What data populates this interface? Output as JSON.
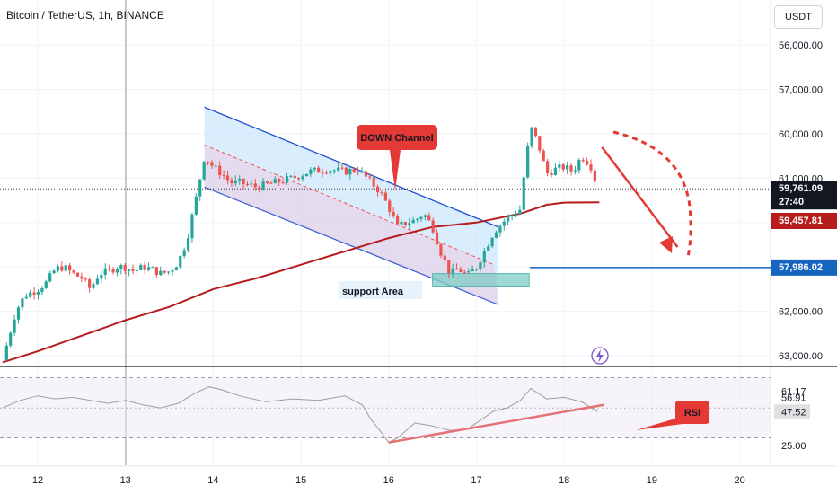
{
  "header": {
    "title": "Bitcoin / TetherUS, 1h, BINANCE"
  },
  "currency_button": "USDT",
  "colors": {
    "up": "#26a69a",
    "down": "#ef5350",
    "ma": "#b71c1c",
    "channel": "#1e4fd8",
    "channel_fill": "#bbdefb",
    "support_fill": "#80cbc4",
    "level": "#1565c0",
    "rsi_line": "#9e9e9e",
    "rsi_trend": "#e57373",
    "callout": "#e53935"
  },
  "price_axis": {
    "ticks": [
      "63,000.00",
      "62,000.00",
      "61,000.00",
      "60,000.00",
      "57,000.00",
      "56,000.00"
    ]
  },
  "price_tags": {
    "current": "59,761.09",
    "countdown": "27:40",
    "ma": "59,457.81",
    "level": "57,986.02"
  },
  "rsi_axis": {
    "labels": [
      "61.17",
      "56.91",
      "47.52",
      "25.00"
    ]
  },
  "time_axis": {
    "labels": [
      "12",
      "13",
      "14",
      "15",
      "16",
      "17",
      "18",
      "19",
      "20"
    ]
  },
  "annotations": {
    "down_channel": "DOWN Channel",
    "support": "support Area",
    "rsi": "RSI"
  },
  "chart_data": {
    "type": "candlestick",
    "title": "Bitcoin / TetherUS, 1h, BINANCE",
    "x_range": [
      "11.6",
      "20.3"
    ],
    "ylim": [
      55800,
      63700
    ],
    "x_ticks": [
      12,
      13,
      14,
      15,
      16,
      17,
      18,
      19,
      20
    ],
    "y_ticks": [
      56000,
      57000,
      60000,
      61000,
      62000,
      63000
    ],
    "close_path": [
      [
        11.6,
        55900
      ],
      [
        11.75,
        57000
      ],
      [
        11.85,
        57350
      ],
      [
        12.0,
        57500
      ],
      [
        12.1,
        57650
      ],
      [
        12.2,
        57950
      ],
      [
        12.3,
        58000
      ],
      [
        12.4,
        57850
      ],
      [
        12.5,
        57750
      ],
      [
        12.6,
        57500
      ],
      [
        12.7,
        57850
      ],
      [
        12.8,
        57900
      ],
      [
        12.9,
        58000
      ],
      [
        13.0,
        58000
      ],
      [
        13.1,
        57900
      ],
      [
        13.2,
        58000
      ],
      [
        13.3,
        57950
      ],
      [
        13.4,
        57850
      ],
      [
        13.5,
        57900
      ],
      [
        13.6,
        58100
      ],
      [
        13.7,
        58600
      ],
      [
        13.8,
        59500
      ],
      [
        13.9,
        60500
      ],
      [
        14.0,
        60250
      ],
      [
        14.1,
        60100
      ],
      [
        14.2,
        59900
      ],
      [
        14.3,
        59900
      ],
      [
        14.5,
        59800
      ],
      [
        14.7,
        59900
      ],
      [
        14.9,
        60000
      ],
      [
        15.1,
        60150
      ],
      [
        15.3,
        60200
      ],
      [
        15.5,
        60150
      ],
      [
        15.65,
        60200
      ],
      [
        15.8,
        59900
      ],
      [
        15.9,
        59700
      ],
      [
        16.0,
        59350
      ],
      [
        16.1,
        58900
      ],
      [
        16.2,
        59000
      ],
      [
        16.3,
        59050
      ],
      [
        16.4,
        59200
      ],
      [
        16.5,
        58900
      ],
      [
        16.6,
        58300
      ],
      [
        16.7,
        57850
      ],
      [
        16.8,
        57950
      ],
      [
        16.9,
        57800
      ],
      [
        17.0,
        58000
      ],
      [
        17.1,
        58400
      ],
      [
        17.2,
        58800
      ],
      [
        17.35,
        59100
      ],
      [
        17.5,
        59300
      ],
      [
        17.55,
        60200
      ],
      [
        17.62,
        61150
      ],
      [
        17.7,
        60800
      ],
      [
        17.8,
        60100
      ],
      [
        17.9,
        60200
      ],
      [
        18.0,
        60250
      ],
      [
        18.1,
        60150
      ],
      [
        18.2,
        60500
      ],
      [
        18.3,
        60300
      ],
      [
        18.38,
        59761
      ]
    ],
    "moving_average": [
      [
        11.6,
        55850
      ],
      [
        12.0,
        56100
      ],
      [
        12.5,
        56450
      ],
      [
        13.0,
        56800
      ],
      [
        13.5,
        57100
      ],
      [
        14.0,
        57500
      ],
      [
        14.5,
        57750
      ],
      [
        15.0,
        58050
      ],
      [
        15.5,
        58350
      ],
      [
        16.0,
        58650
      ],
      [
        16.5,
        58900
      ],
      [
        17.0,
        59000
      ],
      [
        17.5,
        59200
      ],
      [
        17.8,
        59400
      ],
      [
        18.0,
        59450
      ],
      [
        18.4,
        59457.81
      ]
    ],
    "channel": {
      "upper": [
        [
          13.9,
          61600
        ],
        [
          17.25,
          58900
        ]
      ],
      "lower": [
        [
          13.9,
          59800
        ],
        [
          17.25,
          57150
        ]
      ]
    },
    "support_area": {
      "x": [
        16.5,
        17.6
      ],
      "y": [
        57570,
        57850
      ]
    },
    "horizontal_level": 57986.02,
    "current_price": 59761.09,
    "rsi": {
      "levels": [
        61.17,
        56.91,
        47.52,
        25.0
      ],
      "series": [
        [
          11.6,
          50
        ],
        [
          11.8,
          55
        ],
        [
          12.0,
          58
        ],
        [
          12.2,
          56
        ],
        [
          12.4,
          57
        ],
        [
          12.6,
          55
        ],
        [
          12.8,
          53
        ],
        [
          13.0,
          55
        ],
        [
          13.2,
          52
        ],
        [
          13.4,
          50
        ],
        [
          13.6,
          53
        ],
        [
          13.8,
          60
        ],
        [
          13.95,
          64
        ],
        [
          14.1,
          62
        ],
        [
          14.3,
          58
        ],
        [
          14.6,
          54
        ],
        [
          14.9,
          56
        ],
        [
          15.2,
          55
        ],
        [
          15.5,
          58
        ],
        [
          15.7,
          52
        ],
        [
          15.8,
          42
        ],
        [
          15.9,
          35
        ],
        [
          16.0,
          27
        ],
        [
          16.1,
          30
        ],
        [
          16.3,
          40
        ],
        [
          16.5,
          38
        ],
        [
          16.7,
          35
        ],
        [
          16.9,
          36
        ],
        [
          17.0,
          40
        ],
        [
          17.2,
          48
        ],
        [
          17.35,
          50
        ],
        [
          17.5,
          55
        ],
        [
          17.62,
          63
        ],
        [
          17.8,
          56
        ],
        [
          18.0,
          57
        ],
        [
          18.2,
          54
        ],
        [
          18.38,
          47.52
        ]
      ],
      "trendline": [
        [
          16.0,
          27
        ],
        [
          18.4,
          52
        ]
      ]
    },
    "projection": {
      "arrow_from": [
        18.4,
        60700
      ],
      "arrow_to": [
        19.2,
        58450
      ]
    }
  }
}
